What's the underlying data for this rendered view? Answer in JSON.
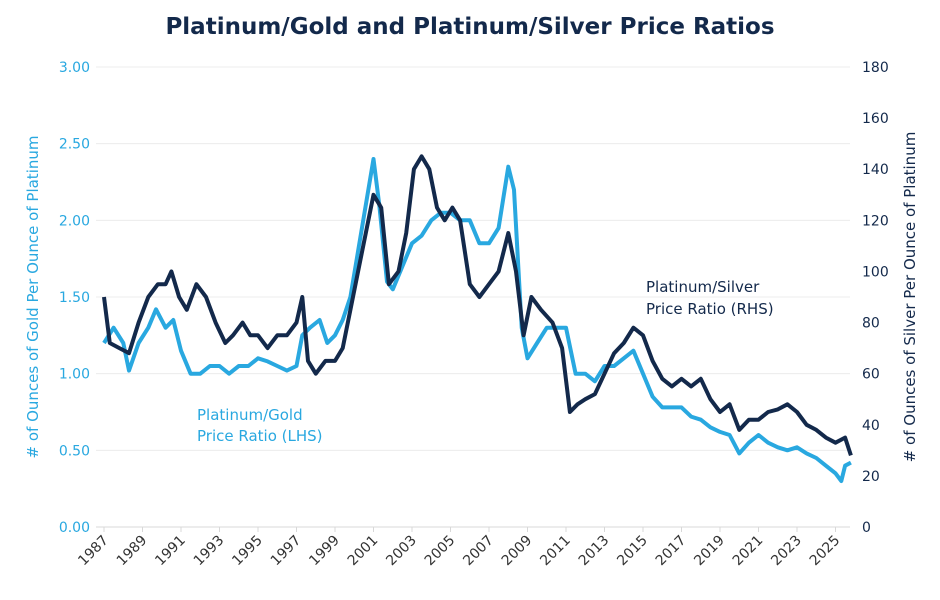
{
  "chart_data": {
    "type": "line",
    "title": "Platinum/Gold and Platinum/Silver Price Ratios",
    "ylabel_left": "# of Ounces of Gold Per Ounce of Platinum",
    "ylabel_right": "# of Ounces of Silver Per Ounce of Platinum",
    "xlim": [
      1987,
      2025.9
    ],
    "ylim_left": [
      0,
      3
    ],
    "ylim_right": [
      0,
      180
    ],
    "x_ticks": [
      "1987",
      "1989",
      "1991",
      "1993",
      "1995",
      "1997",
      "1999",
      "2001",
      "2003",
      "2005",
      "2007",
      "2009",
      "2011",
      "2013",
      "2015",
      "2017",
      "2019",
      "2021",
      "2023",
      "2025"
    ],
    "y_ticks_left": [
      "0.00",
      "0.50",
      "1.00",
      "1.50",
      "2.00",
      "2.50",
      "3.00"
    ],
    "y_ticks_right": [
      "0",
      "20",
      "40",
      "60",
      "80",
      "100",
      "120",
      "140",
      "160",
      "180"
    ],
    "grid": true,
    "colors": {
      "pt_gold": "#29a8e0",
      "pt_silver": "#13294b",
      "title": "#13294b"
    },
    "annotations": {
      "pt_gold": [
        "Platinum/Gold",
        "Price Ratio (LHS)"
      ],
      "pt_silver": [
        "Platinum/Silver",
        "Price Ratio (RHS)"
      ]
    },
    "series": [
      {
        "name": "Platinum/Gold Price Ratio (LHS)",
        "axis": "left",
        "x": [
          1987,
          1987.5,
          1988,
          1988.3,
          1988.8,
          1989.3,
          1989.7,
          1990.2,
          1990.6,
          1991,
          1991.5,
          1992,
          1992.5,
          1993,
          1993.5,
          1994,
          1994.5,
          1995,
          1995.5,
          1996,
          1996.5,
          1997,
          1997.3,
          1997.7,
          1998.2,
          1998.6,
          1999,
          1999.4,
          1999.8,
          2000.2,
          2000.6,
          2001,
          2001.3,
          2001.7,
          2002,
          2002.5,
          2003,
          2003.5,
          2004,
          2004.5,
          2005,
          2005.5,
          2006,
          2006.5,
          2007,
          2007.5,
          2008,
          2008.3,
          2008.7,
          2009,
          2009.5,
          2010,
          2010.5,
          2011,
          2011.5,
          2012,
          2012.5,
          2013,
          2013.5,
          2014,
          2014.5,
          2015,
          2015.5,
          2016,
          2016.5,
          2017,
          2017.5,
          2018,
          2018.5,
          2019,
          2019.5,
          2020,
          2020.5,
          2021,
          2021.5,
          2022,
          2022.5,
          2023,
          2023.5,
          2024,
          2024.5,
          2025,
          2025.3,
          2025.5,
          2025.8
        ],
        "y": [
          1.2,
          1.3,
          1.2,
          1.02,
          1.2,
          1.3,
          1.42,
          1.3,
          1.35,
          1.15,
          1.0,
          1.0,
          1.05,
          1.05,
          1.0,
          1.05,
          1.05,
          1.1,
          1.08,
          1.05,
          1.02,
          1.05,
          1.25,
          1.3,
          1.35,
          1.2,
          1.25,
          1.35,
          1.5,
          1.8,
          2.1,
          2.4,
          2.1,
          1.6,
          1.55,
          1.7,
          1.85,
          1.9,
          2.0,
          2.05,
          2.05,
          2.0,
          2.0,
          1.85,
          1.85,
          1.95,
          2.35,
          2.2,
          1.3,
          1.1,
          1.2,
          1.3,
          1.3,
          1.3,
          1.0,
          1.0,
          0.95,
          1.05,
          1.05,
          1.1,
          1.15,
          1.0,
          0.85,
          0.78,
          0.78,
          0.78,
          0.72,
          0.7,
          0.65,
          0.62,
          0.6,
          0.48,
          0.55,
          0.6,
          0.55,
          0.52,
          0.5,
          0.52,
          0.48,
          0.45,
          0.4,
          0.35,
          0.3,
          0.4,
          0.42
        ]
      },
      {
        "name": "Platinum/Silver Price Ratio (RHS)",
        "axis": "right",
        "x": [
          1987,
          1987.3,
          1987.8,
          1988.3,
          1988.8,
          1989.3,
          1989.8,
          1990.2,
          1990.5,
          1990.9,
          1991.3,
          1991.8,
          1992.3,
          1992.8,
          1993.3,
          1993.7,
          1994.2,
          1994.6,
          1995,
          1995.5,
          1996,
          1996.5,
          1997,
          1997.3,
          1997.6,
          1998,
          1998.5,
          1999,
          1999.4,
          1999.8,
          2000.2,
          2000.6,
          2001,
          2001.4,
          2001.8,
          2002.3,
          2002.7,
          2003.1,
          2003.5,
          2003.9,
          2004.3,
          2004.7,
          2005.1,
          2005.5,
          2006,
          2006.5,
          2007,
          2007.5,
          2008,
          2008.4,
          2008.8,
          2009.2,
          2009.7,
          2010.3,
          2010.8,
          2011.2,
          2011.6,
          2012,
          2012.5,
          2013,
          2013.5,
          2014,
          2014.5,
          2015,
          2015.5,
          2016,
          2016.5,
          2017,
          2017.5,
          2018,
          2018.5,
          2019,
          2019.5,
          2020,
          2020.5,
          2021,
          2021.5,
          2022,
          2022.5,
          2023,
          2023.5,
          2024,
          2024.5,
          2025,
          2025.5,
          2025.8
        ],
        "y": [
          90,
          72,
          70,
          68,
          80,
          90,
          95,
          95,
          100,
          90,
          85,
          95,
          90,
          80,
          72,
          75,
          80,
          75,
          75,
          70,
          75,
          75,
          80,
          90,
          65,
          60,
          65,
          65,
          70,
          85,
          100,
          115,
          130,
          125,
          95,
          100,
          115,
          140,
          145,
          140,
          125,
          120,
          125,
          120,
          95,
          90,
          95,
          100,
          115,
          100,
          75,
          90,
          85,
          80,
          70,
          45,
          48,
          50,
          52,
          60,
          68,
          72,
          78,
          75,
          65,
          58,
          55,
          58,
          55,
          58,
          50,
          45,
          48,
          38,
          42,
          42,
          45,
          46,
          48,
          45,
          40,
          38,
          35,
          33,
          35,
          28
        ]
      }
    ]
  }
}
